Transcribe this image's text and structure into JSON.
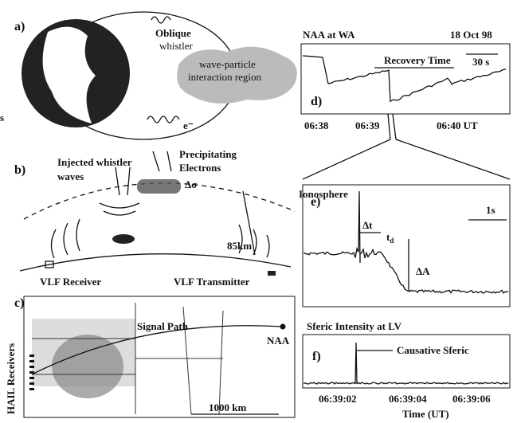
{
  "panel_a": {
    "label": "a)",
    "whistler": [
      "Oblique",
      "whistler"
    ],
    "region": [
      "wave-particle",
      "interaction region"
    ],
    "electron": "e⁻"
  },
  "panel_b": {
    "label": "b)",
    "injected": [
      "Injected whistler",
      "waves"
    ],
    "precipitating": [
      "Precipitating",
      "Electrons"
    ],
    "delta_sigma": "Δσ",
    "ionosphere": "Ionosphere",
    "altitude": "85km",
    "receiver": "VLF Receiver",
    "transmitter": "VLF Transmitter"
  },
  "panel_c": {
    "label": "c)",
    "signal_path": "Signal Path",
    "station": "NAA",
    "receivers": "HAIL Receivers",
    "scale": "1000 km"
  },
  "panel_d": {
    "label": "d)",
    "title_left": "NAA at WA",
    "title_right": "18 Oct 98",
    "recovery": "Recovery Time",
    "scale": "30 s",
    "ticks": [
      "06:38",
      "06:39",
      "06:40 UT"
    ]
  },
  "panel_e": {
    "label": "e)",
    "scale": "1s",
    "delta_t": "Δt",
    "t_d": "t",
    "t_d_sub": "d",
    "delta_a": "ΔA"
  },
  "panel_f": {
    "label": "f)",
    "title": "Sferic Intensity at LV",
    "sferic": "Causative Sferic",
    "ticks": [
      "06:39:02",
      "06:39:04",
      "06:39:06"
    ],
    "xlabel": "Time (UT)"
  },
  "edge": "s"
}
